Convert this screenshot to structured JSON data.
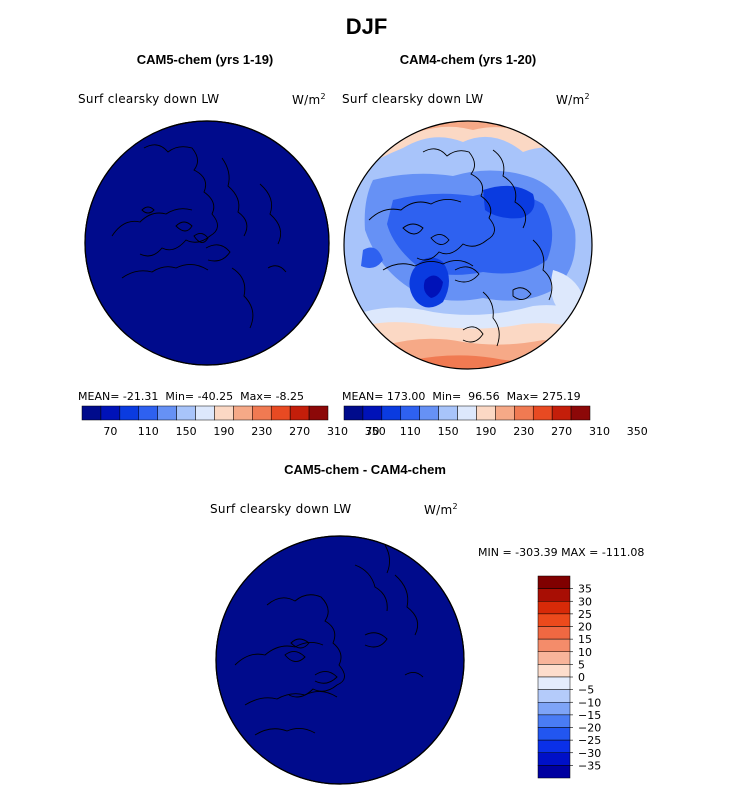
{
  "title": "DJF",
  "colors": {
    "bar12": [
      "#000b8c",
      "#0012b8",
      "#0a3be0",
      "#2e61f0",
      "#6691f5",
      "#a8c4fa",
      "#dde8fc",
      "#fbd8c4",
      "#f6a987",
      "#f07a52",
      "#e84a22",
      "#c41e0a",
      "#8c0808"
    ],
    "diff16": [
      "#0000a0",
      "#0010c8",
      "#0a30e8",
      "#2256f0",
      "#4a7cf4",
      "#7ea4f7",
      "#b4cbfa",
      "#e4ecfc",
      "#fdddcc",
      "#f8b49a",
      "#f48c6a",
      "#f06842",
      "#ec4a1c",
      "#d82a08",
      "#a80e04",
      "#800000"
    ],
    "map_fill": "#000b8c"
  },
  "chart_data": [
    {
      "type": "heatmap",
      "title": "CAM5-chem (yrs 1-19)",
      "variable": "Surf clearsky down LW",
      "units": "W/m",
      "units_sup": "2",
      "stats": {
        "mean_label": "MEAN=",
        "mean": "-21.31",
        "min_label": "Min=",
        "min": "-40.25",
        "max_label": "Max=",
        "max": "-8.25"
      },
      "colorbar_ticks": [
        "70",
        "110",
        "150",
        "190",
        "230",
        "270",
        "310",
        "350"
      ]
    },
    {
      "type": "heatmap",
      "title": "CAM4-chem (yrs 1-20)",
      "variable": "Surf clearsky down LW",
      "units": "W/m",
      "units_sup": "2",
      "stats": {
        "mean_label": "MEAN=",
        "mean": "173.00",
        "min_label": "Min=",
        "min": "96.56",
        "max_label": "Max=",
        "max": "275.19"
      },
      "colorbar_ticks": [
        "70",
        "110",
        "150",
        "190",
        "230",
        "270",
        "310",
        "350"
      ]
    },
    {
      "type": "heatmap",
      "title": "CAM5-chem - CAM4-chem",
      "variable": "Surf clearsky down LW",
      "units": "W/m",
      "units_sup": "2",
      "stats_text": "MIN = -303.39 MAX = -111.08",
      "colorbar_ticks": [
        "35",
        "30",
        "25",
        "20",
        "15",
        "10",
        "5",
        "0",
        "−5",
        "−10",
        "−15",
        "−20",
        "−25",
        "−30",
        "−35"
      ]
    }
  ]
}
